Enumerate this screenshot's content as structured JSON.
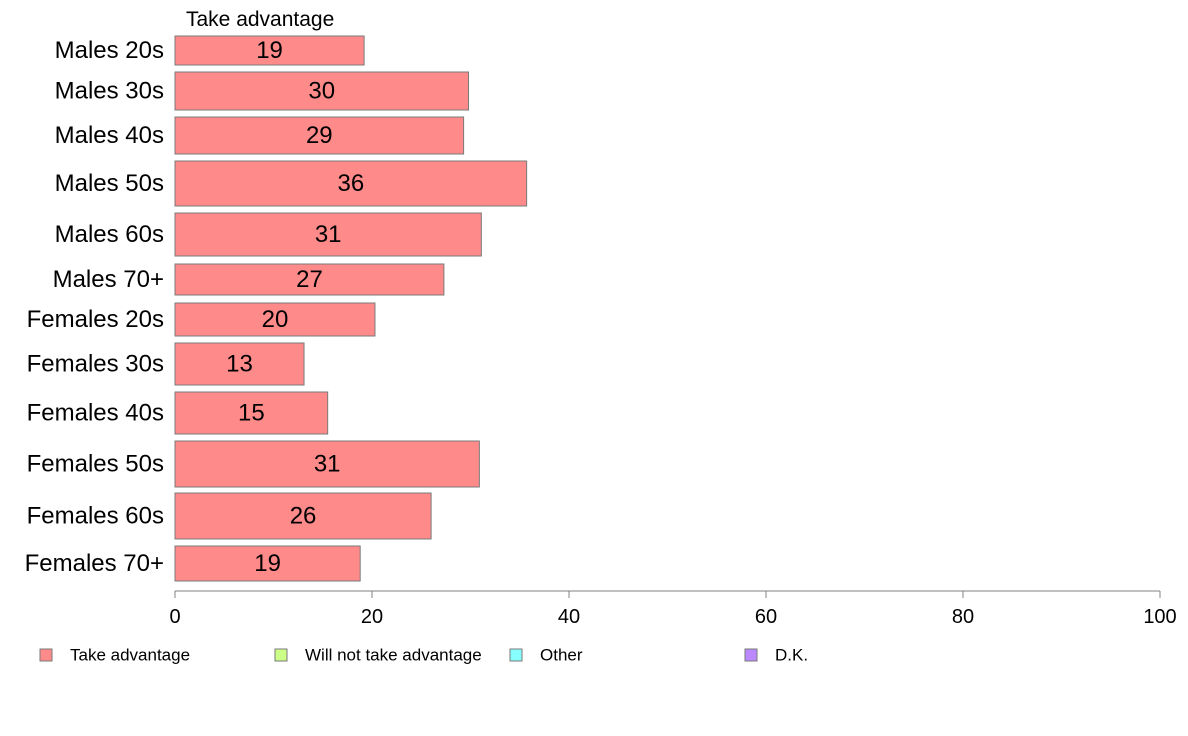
{
  "chart_data": {
    "type": "bar",
    "orientation": "horizontal",
    "series_header": "Take advantage",
    "categories": [
      "Males 20s",
      "Males 30s",
      "Males 40s",
      "Males 50s",
      "Males 60s",
      "Males 70+",
      "Females 20s",
      "Females 30s",
      "Females 40s",
      "Females 50s",
      "Females 60s",
      "Females 70+"
    ],
    "series": [
      {
        "name": "Take advantage",
        "color": "#ff8a8a",
        "values": [
          19.2,
          29.8,
          29.3,
          35.7,
          31.1,
          27.3,
          20.3,
          13.1,
          15.5,
          30.9,
          26.0,
          18.8
        ],
        "labels": [
          "19",
          "30",
          "29",
          "36",
          "31",
          "27",
          "20",
          "13",
          "15",
          "31",
          "26",
          "19"
        ]
      }
    ],
    "xlim": [
      0,
      100
    ],
    "xticks": [
      0,
      20,
      40,
      60,
      80,
      100
    ],
    "legend": {
      "placement": "bottom",
      "items": [
        {
          "label": "Take advantage",
          "color": "#ff8a8a"
        },
        {
          "label": "Will not take advantage",
          "color": "#ccff88"
        },
        {
          "label": "Other",
          "color": "#88ffff"
        },
        {
          "label": "D.K.",
          "color": "#bb88ff"
        }
      ]
    },
    "grid": false
  }
}
